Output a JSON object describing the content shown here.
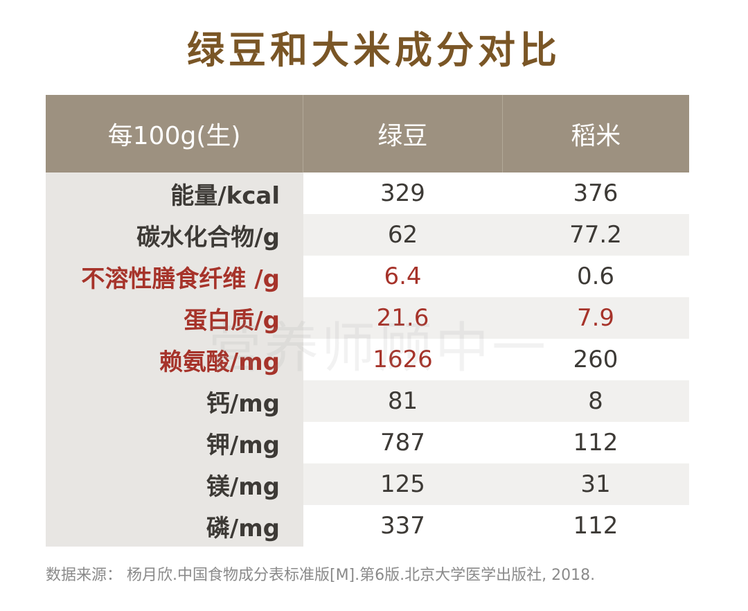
{
  "title": "绿豆和大米成分对比",
  "watermark": "营养师顾中一",
  "colors": {
    "header_bg": "#9d9180",
    "title": "#7a5626",
    "highlight": "#a6332a"
  },
  "chart_data": {
    "type": "table",
    "title": "绿豆和大米成分对比",
    "columns": [
      "每100g(生)",
      "绿豆",
      "稻米"
    ],
    "rows": [
      {
        "label": "能量/kcal",
        "values": [
          "329",
          "376"
        ],
        "highlight": [
          false,
          false,
          false
        ]
      },
      {
        "label": "碳水化合物/g",
        "values": [
          "62",
          "77.2"
        ],
        "highlight": [
          false,
          false,
          false
        ]
      },
      {
        "label": "不溶性膳食纤维 /g",
        "values": [
          "6.4",
          "0.6"
        ],
        "highlight": [
          true,
          true,
          false
        ]
      },
      {
        "label": "蛋白质/g",
        "values": [
          "21.6",
          "7.9"
        ],
        "highlight": [
          true,
          true,
          true
        ]
      },
      {
        "label": "赖氨酸/mg",
        "values": [
          "1626",
          "260"
        ],
        "highlight": [
          true,
          true,
          false
        ]
      },
      {
        "label": "钙/mg",
        "values": [
          "81",
          "8"
        ],
        "highlight": [
          false,
          false,
          false
        ]
      },
      {
        "label": "钾/mg",
        "values": [
          "787",
          "112"
        ],
        "highlight": [
          false,
          false,
          false
        ]
      },
      {
        "label": "镁/mg",
        "values": [
          "125",
          "31"
        ],
        "highlight": [
          false,
          false,
          false
        ]
      },
      {
        "label": "磷/mg",
        "values": [
          "337",
          "112"
        ],
        "highlight": [
          false,
          false,
          false
        ]
      }
    ]
  },
  "footnote": "数据来源： 杨月欣.中国食物成分表标准版[M].第6版.北京大学医学出版社, 2018."
}
